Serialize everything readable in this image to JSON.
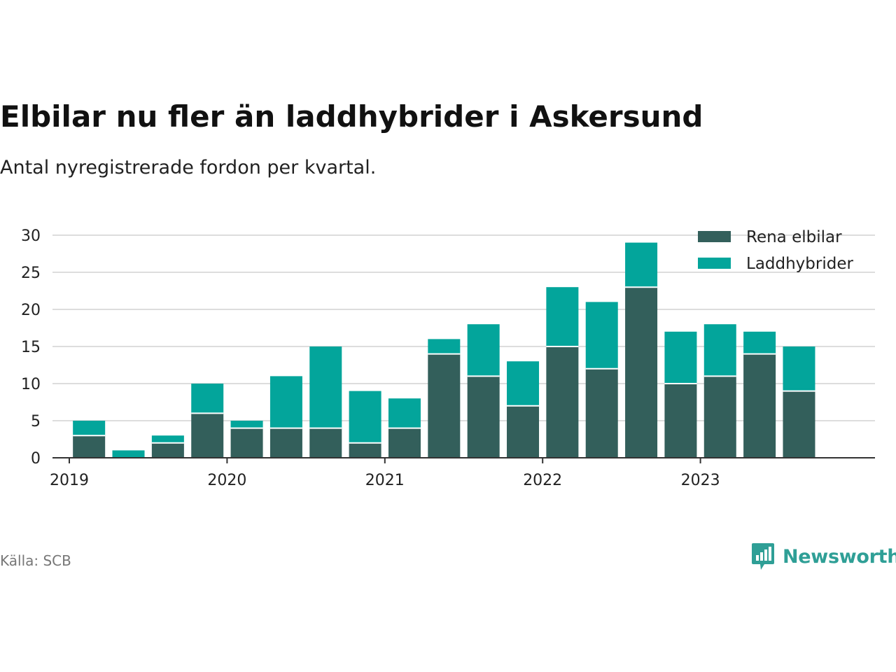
{
  "title": "Elbilar nu fler än laddhybrider i Askersund",
  "subtitle": "Antal nyregistrerade fordon per kvartal.",
  "source": "Källa: SCB",
  "brand": "Newsworthy",
  "colors": {
    "rena": "#335f5b",
    "ladd": "#03a59b",
    "grid": "#dddddd",
    "axis": "#333333",
    "brand": "#2f9f96"
  },
  "chart_data": {
    "type": "bar",
    "stacked": true,
    "categories": [
      "2019 Q1",
      "2019 Q2",
      "2019 Q3",
      "2019 Q4",
      "2020 Q1",
      "2020 Q2",
      "2020 Q3",
      "2020 Q4",
      "2021 Q1",
      "2021 Q2",
      "2021 Q3",
      "2021 Q4",
      "2022 Q1",
      "2022 Q2",
      "2022 Q3",
      "2022 Q4",
      "2023 Q1",
      "2023 Q2",
      "2023 Q3",
      "2023 Q4"
    ],
    "series": [
      {
        "name": "Rena elbilar",
        "values": [
          3,
          0,
          2,
          6,
          4,
          4,
          4,
          2,
          4,
          14,
          11,
          7,
          15,
          12,
          23,
          10,
          11,
          14,
          9,
          0
        ]
      },
      {
        "name": "Laddhybrider",
        "values": [
          2,
          1,
          1,
          4,
          1,
          7,
          11,
          7,
          4,
          2,
          7,
          6,
          8,
          9,
          6,
          7,
          7,
          3,
          6,
          0
        ]
      }
    ],
    "ylim": [
      0,
      30
    ],
    "yticks": [
      0,
      5,
      10,
      15,
      20,
      25,
      30
    ],
    "xtick_labels": [
      "2019",
      "2020",
      "2021",
      "2022",
      "2023"
    ],
    "legend_position": "top-right"
  }
}
